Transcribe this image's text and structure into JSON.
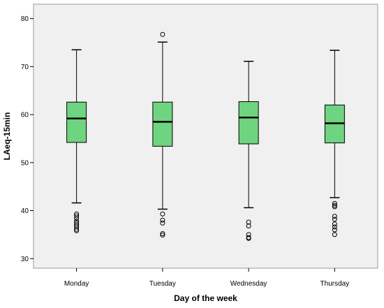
{
  "chart_data": {
    "type": "boxplot",
    "xlabel": "Day of the week",
    "ylabel": "LAeq-15min",
    "ylim": [
      28,
      83
    ],
    "yticks": [
      30,
      40,
      50,
      60,
      70,
      80
    ],
    "grid": false,
    "categories": [
      "Monday",
      "Tuesday",
      "Wednesday",
      "Thursday"
    ],
    "boxes": [
      {
        "category": "Monday",
        "whisker_low": 41.6,
        "q1": 54.2,
        "median": 59.2,
        "q3": 62.6,
        "whisker_high": 73.5,
        "outliers": [
          35.8,
          36.1,
          36.6,
          37.0,
          37.4,
          37.8,
          38.4,
          38.9,
          39.3
        ]
      },
      {
        "category": "Tuesday",
        "whisker_low": 40.3,
        "q1": 53.4,
        "median": 58.5,
        "q3": 62.6,
        "whisker_high": 75.1,
        "outliers": [
          76.7,
          39.3,
          38.0,
          37.4,
          35.2,
          34.9
        ]
      },
      {
        "category": "Wednesday",
        "whisker_low": 40.6,
        "q1": 53.9,
        "median": 59.4,
        "q3": 62.7,
        "whisker_high": 71.1,
        "outliers": [
          37.6,
          36.8,
          35.0,
          34.4,
          34.2
        ]
      },
      {
        "category": "Thursday",
        "whisker_low": 42.7,
        "q1": 54.1,
        "median": 58.2,
        "q3": 62.0,
        "whisker_high": 73.4,
        "outliers": [
          41.5,
          41.1,
          40.8,
          38.8,
          38.2,
          37.2,
          36.6,
          36.0,
          35.0
        ]
      }
    ],
    "colors": {
      "plot_background": "#f0f0f0",
      "box_fill": "#6ed47f",
      "line": "#000000"
    }
  }
}
